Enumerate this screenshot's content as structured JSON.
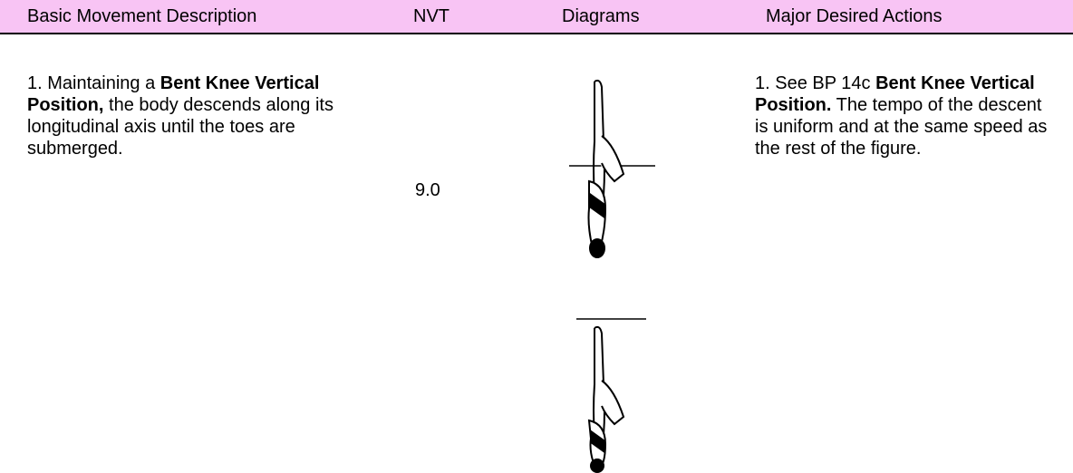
{
  "table": {
    "headers": [
      "Basic Movement Description",
      "NVT",
      "Diagrams",
      "Major Desired Actions"
    ],
    "rows": [
      {
        "description": [
          {
            "text": "1. Maintaining a ",
            "bold": false
          },
          {
            "text": "Bent Knee Vertical Position,",
            "bold": true
          },
          {
            "text": " the body descends along its longitudinal axis until the toes are submerged.",
            "bold": false
          }
        ],
        "nvt": "9.0",
        "actions": [
          {
            "text": "1. See BP 14c ",
            "bold": false
          },
          {
            "text": "Bent Knee Vertical Position.",
            "bold": true
          },
          {
            "text": " The tempo of the descent is uniform and at the same speed as the rest of the figure.",
            "bold": false
          }
        ]
      }
    ]
  }
}
